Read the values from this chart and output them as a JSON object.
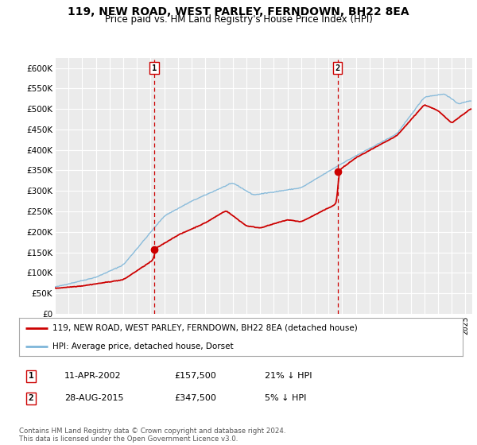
{
  "title": "119, NEW ROAD, WEST PARLEY, FERNDOWN, BH22 8EA",
  "subtitle": "Price paid vs. HM Land Registry's House Price Index (HPI)",
  "ylabel_ticks": [
    "£0",
    "£50K",
    "£100K",
    "£150K",
    "£200K",
    "£250K",
    "£300K",
    "£350K",
    "£400K",
    "£450K",
    "£500K",
    "£550K",
    "£600K"
  ],
  "ytick_values": [
    0,
    50000,
    100000,
    150000,
    200000,
    250000,
    300000,
    350000,
    400000,
    450000,
    500000,
    550000,
    600000
  ],
  "ylim": [
    0,
    625000
  ],
  "background_color": "#ffffff",
  "plot_bg_color": "#ebebeb",
  "grid_color": "#ffffff",
  "hpi_color": "#7eb6d9",
  "price_color": "#cc0000",
  "vline_color": "#cc0000",
  "marker1_x": 2002.27,
  "marker1_y": 157500,
  "marker2_x": 2015.66,
  "marker2_y": 347500,
  "marker1_label": "1",
  "marker2_label": "2",
  "legend_line1": "119, NEW ROAD, WEST PARLEY, FERNDOWN, BH22 8EA (detached house)",
  "legend_line2": "HPI: Average price, detached house, Dorset",
  "table_row1": [
    "1",
    "11-APR-2002",
    "£157,500",
    "21% ↓ HPI"
  ],
  "table_row2": [
    "2",
    "28-AUG-2015",
    "£347,500",
    "5% ↓ HPI"
  ],
  "footnote": "Contains HM Land Registry data © Crown copyright and database right 2024.\nThis data is licensed under the Open Government Licence v3.0.",
  "xmin": 1995.0,
  "xmax": 2025.5
}
